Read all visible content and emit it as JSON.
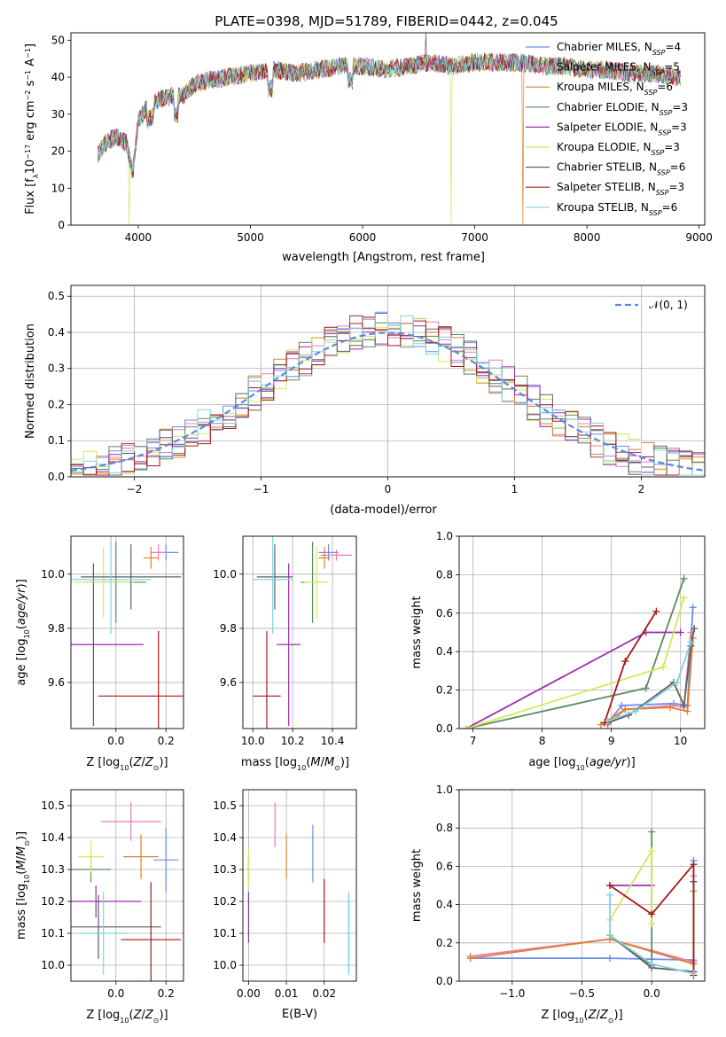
{
  "figure_title": "PLATE=0398, MJD=51789, FIBERID=0442, z=0.045",
  "colors": {
    "Chabrier MILES": "#6c8ee8",
    "Salpeter MILES": "#e57fb0",
    "Kroupa MILES": "#e0802a",
    "Chabrier ELODIE": "#5a8a5e",
    "Salpeter ELODIE": "#9b2fae",
    "Kroupa ELODIE": "#d4e85a",
    "Chabrier STELIB": "#606060",
    "Salpeter STELIB": "#a81818",
    "Kroupa STELIB": "#7fd3e0"
  },
  "chart_data": [
    {
      "panel": "spectrum",
      "type": "line",
      "title": "PLATE=0398, MJD=51789, FIBERID=0442, z=0.045",
      "xlabel": "wavelength [Angstrom, rest frame]",
      "ylabel": "Flux [f_λ 10^-17 erg cm^-2 s^-1 A^-1]",
      "xlim": [
        3400,
        9050
      ],
      "ylim": [
        0,
        52
      ],
      "xticks": [
        4000,
        5000,
        6000,
        7000,
        8000,
        9000
      ],
      "yticks": [
        0,
        10,
        20,
        30,
        40,
        50
      ],
      "legend_position": "right",
      "legend": [
        {
          "label": "Chabrier MILES, N",
          "sub": "SSP",
          "tail": "=4"
        },
        {
          "label": "Salpeter MILES, N",
          "sub": "SSP",
          "tail": "=5"
        },
        {
          "label": "Kroupa MILES, N",
          "sub": "SSP",
          "tail": "=6"
        },
        {
          "label": "Chabrier ELODIE, N",
          "sub": "SSP",
          "tail": "=3"
        },
        {
          "label": "Salpeter ELODIE, N",
          "sub": "SSP",
          "tail": "=3"
        },
        {
          "label": "Kroupa ELODIE, N",
          "sub": "SSP",
          "tail": "=3"
        },
        {
          "label": "Chabrier STELIB, N",
          "sub": "SSP",
          "tail": "=6"
        },
        {
          "label": "Salpeter STELIB, N",
          "sub": "SSP",
          "tail": "=3"
        },
        {
          "label": "Kroupa STELIB, N",
          "sub": "SSP",
          "tail": "=6"
        }
      ],
      "continuum": {
        "x": [
          3640,
          3700,
          3800,
          3900,
          3950,
          4000,
          4100,
          4200,
          4300,
          4400,
          4500,
          4600,
          4800,
          5000,
          5200,
          5400,
          5600,
          5800,
          6000,
          6200,
          6400,
          6600,
          6800,
          7000,
          7200,
          7400,
          7600,
          7800,
          8000,
          8200,
          8400,
          8600,
          8800
        ],
        "y": [
          19,
          22,
          24,
          22,
          14,
          28,
          33,
          34,
          35,
          35,
          38,
          39,
          40,
          41,
          42,
          41,
          42,
          43,
          43,
          42,
          43,
          44,
          43,
          44,
          44,
          44,
          43,
          43,
          42,
          42,
          41,
          41,
          40
        ]
      },
      "dropouts": [
        {
          "series": "Kroupa ELODIE",
          "x": 3915,
          "y": 0
        },
        {
          "series": "Kroupa ELODIE",
          "x": 6790,
          "y": 0
        },
        {
          "series": "Kroupa MILES",
          "x": 7425,
          "y": 0
        }
      ]
    },
    {
      "panel": "residual_histogram",
      "type": "line",
      "xlabel": "(data-model)/error",
      "ylabel": "Normed distribution",
      "xlim": [
        -2.5,
        2.5
      ],
      "ylim": [
        0,
        0.53
      ],
      "xticks": [
        -2,
        -1,
        0,
        1,
        2
      ],
      "yticks": [
        0.0,
        0.1,
        0.2,
        0.3,
        0.4,
        0.5
      ],
      "grid": true,
      "legend_position": "top-right",
      "reference_curve": {
        "label": "𝒩(0, 1)",
        "mean": 0,
        "sigma": 1
      },
      "bin_width": 0.1,
      "bin_start": -2.5,
      "gaussian_envelope": {
        "peak": 0.41,
        "sigma": 0.98
      },
      "series_noise_amplitude": 0.05
    },
    {
      "panel": "Z_vs_age",
      "type": "scatter",
      "xlabel": "Z [log10(Z/Z⊙)]",
      "ylabel": "age [log10(age/yr)]",
      "xlim": [
        -0.18,
        0.27
      ],
      "ylim": [
        9.43,
        10.14
      ],
      "xticks": [
        0.0,
        0.2
      ],
      "xtick_labels": [
        "0.0",
        "0.2"
      ],
      "yticks": [
        9.6,
        9.8,
        10.0
      ],
      "grid": true,
      "points": [
        {
          "series": "Chabrier MILES",
          "x": 0.2,
          "y": 10.08,
          "xerr": 0.05,
          "yerr": 0.03
        },
        {
          "series": "Salpeter MILES",
          "x": 0.17,
          "y": 10.08,
          "xerr": 0.03,
          "yerr": 0.03
        },
        {
          "series": "Kroupa MILES",
          "x": 0.14,
          "y": 10.06,
          "xerr": 0.03,
          "yerr": 0.04
        },
        {
          "series": "Chabrier ELODIE",
          "x": 0.0,
          "y": 9.97,
          "xerr": 0.12,
          "yerr": 0.15
        },
        {
          "series": "Salpeter ELODIE",
          "x": -0.09,
          "y": 9.74,
          "xerr": 0.2,
          "yerr": 0.3
        },
        {
          "series": "Kroupa ELODIE",
          "x": -0.05,
          "y": 9.97,
          "xerr": 0.12,
          "yerr": 0.13
        },
        {
          "series": "Chabrier STELIB",
          "x": 0.06,
          "y": 9.99,
          "xerr": 0.2,
          "yerr": 0.12
        },
        {
          "series": "Salpeter STELIB",
          "x": 0.17,
          "y": 9.55,
          "xerr": 0.24,
          "yerr": 0.24
        },
        {
          "series": "Kroupa STELIB",
          "x": -0.02,
          "y": 9.98,
          "xerr": 0.16,
          "yerr": 0.2
        }
      ]
    },
    {
      "panel": "mass_vs_age",
      "type": "scatter",
      "xlabel": "mass [log10(M/M⊙)]",
      "xlim": [
        9.95,
        10.52
      ],
      "ylim": [
        9.43,
        10.14
      ],
      "xticks": [
        10.0,
        10.2,
        10.4
      ],
      "xtick_labels": [
        "10.0",
        "10.2",
        "10.4"
      ],
      "yticks": [
        9.6,
        9.8,
        10.0
      ],
      "grid": true,
      "points": [
        {
          "series": "Chabrier MILES",
          "x": 10.38,
          "y": 10.08,
          "xerr": 0.05,
          "yerr": 0.03
        },
        {
          "series": "Salpeter MILES",
          "x": 10.42,
          "y": 10.07,
          "xerr": 0.08,
          "yerr": 0.02
        },
        {
          "series": "Kroupa MILES",
          "x": 10.36,
          "y": 10.06,
          "xerr": 0.03,
          "yerr": 0.04
        },
        {
          "series": "Chabrier ELODIE",
          "x": 10.3,
          "y": 9.97,
          "xerr": 0.06,
          "yerr": 0.15
        },
        {
          "series": "Salpeter ELODIE",
          "x": 10.18,
          "y": 9.74,
          "xerr": 0.06,
          "yerr": 0.3
        },
        {
          "series": "Kroupa ELODIE",
          "x": 10.32,
          "y": 9.97,
          "xerr": 0.06,
          "yerr": 0.13
        },
        {
          "series": "Chabrier STELIB",
          "x": 10.11,
          "y": 9.99,
          "xerr": 0.09,
          "yerr": 0.12
        },
        {
          "series": "Salpeter STELIB",
          "x": 10.07,
          "y": 9.55,
          "xerr": 0.07,
          "yerr": 0.24
        },
        {
          "series": "Kroupa STELIB",
          "x": 10.1,
          "y": 9.98,
          "xerr": 0.1,
          "yerr": 0.2
        }
      ]
    },
    {
      "panel": "age_vs_mass_weight",
      "type": "line",
      "xlabel": "age [log10(age/yr)]",
      "ylabel": "mass weight",
      "xlim": [
        6.8,
        10.35
      ],
      "ylim": [
        0,
        1.0
      ],
      "xticks": [
        7,
        8,
        9,
        10
      ],
      "yticks": [
        0.0,
        0.2,
        0.4,
        0.6,
        0.8,
        1.0
      ],
      "grid": true,
      "series": [
        {
          "name": "Chabrier MILES",
          "x": [
            8.95,
            9.15,
            9.9,
            10.1,
            10.18
          ],
          "y": [
            0.03,
            0.12,
            0.13,
            0.12,
            0.63
          ]
        },
        {
          "name": "Salpeter MILES",
          "x": [
            8.95,
            9.2,
            9.9,
            10.05,
            10.15
          ],
          "y": [
            0.02,
            0.1,
            0.12,
            0.11,
            0.5
          ]
        },
        {
          "name": "Kroupa MILES",
          "x": [
            8.85,
            9.2,
            9.85,
            10.1,
            10.18
          ],
          "y": [
            0.02,
            0.1,
            0.11,
            0.09,
            0.47
          ]
        },
        {
          "name": "Chabrier ELODIE",
          "x": [
            6.9,
            9.5,
            10.05
          ],
          "y": [
            0.0,
            0.21,
            0.78
          ]
        },
        {
          "name": "Salpeter ELODIE",
          "x": [
            6.9,
            9.5,
            10.0
          ],
          "y": [
            0.0,
            0.5,
            0.5
          ]
        },
        {
          "name": "Kroupa ELODIE",
          "x": [
            6.9,
            9.75,
            10.05
          ],
          "y": [
            0.0,
            0.32,
            0.68
          ]
        },
        {
          "name": "Chabrier STELIB",
          "x": [
            8.95,
            9.25,
            9.9,
            10.05,
            10.15,
            10.2
          ],
          "y": [
            0.03,
            0.07,
            0.24,
            0.12,
            0.43,
            0.52
          ]
        },
        {
          "name": "Salpeter STELIB",
          "x": [
            8.9,
            9.2,
            9.65
          ],
          "y": [
            0.03,
            0.35,
            0.61
          ]
        },
        {
          "name": "Kroupa STELIB",
          "x": [
            8.95,
            9.35,
            9.95,
            10.15
          ],
          "y": [
            0.04,
            0.09,
            0.24,
            0.45
          ]
        }
      ]
    },
    {
      "panel": "Z_vs_mass",
      "type": "scatter",
      "xlabel": "Z [log10(Z/Z⊙)]",
      "ylabel": "mass [log10(M/M⊙)]",
      "xlim": [
        -0.18,
        0.27
      ],
      "ylim": [
        9.95,
        10.55
      ],
      "xticks": [
        0.0,
        0.2
      ],
      "xtick_labels": [
        "0.0",
        "0.2"
      ],
      "yticks": [
        10.0,
        10.1,
        10.2,
        10.3,
        10.4,
        10.5
      ],
      "grid": true,
      "points": [
        {
          "series": "Chabrier MILES",
          "x": 0.2,
          "y": 10.33,
          "xerr": 0.05,
          "yerr": 0.1
        },
        {
          "series": "Salpeter MILES",
          "x": 0.06,
          "y": 10.45,
          "xerr": 0.12,
          "yerr": 0.06
        },
        {
          "series": "Kroupa MILES",
          "x": 0.1,
          "y": 10.34,
          "xerr": 0.07,
          "yerr": 0.07
        },
        {
          "series": "Chabrier ELODIE",
          "x": -0.1,
          "y": 10.3,
          "xerr": 0.08,
          "yerr": 0.04
        },
        {
          "series": "Salpeter ELODIE",
          "x": -0.08,
          "y": 10.2,
          "xerr": 0.18,
          "yerr": 0.05
        },
        {
          "series": "Kroupa ELODIE",
          "x": -0.1,
          "y": 10.34,
          "xerr": 0.05,
          "yerr": 0.05
        },
        {
          "series": "Chabrier STELIB",
          "x": -0.07,
          "y": 10.12,
          "xerr": 0.25,
          "yerr": 0.1
        },
        {
          "series": "Salpeter STELIB",
          "x": 0.14,
          "y": 10.08,
          "xerr": 0.12,
          "yerr": 0.18
        },
        {
          "series": "Kroupa STELIB",
          "x": -0.05,
          "y": 10.1,
          "xerr": 0.1,
          "yerr": 0.13
        }
      ]
    },
    {
      "panel": "EBV_vs_mass",
      "type": "scatter",
      "xlabel": "E(B-V)",
      "xlim": [
        -0.0015,
        0.0285
      ],
      "ylim": [
        9.95,
        10.55
      ],
      "xticks": [
        0.0,
        0.01,
        0.02
      ],
      "xtick_labels": [
        "0.00",
        "0.01",
        "0.02"
      ],
      "yticks": [
        10.0,
        10.1,
        10.2,
        10.3,
        10.4,
        10.5
      ],
      "grid": true,
      "points": [
        {
          "series": "Chabrier MILES",
          "x": 0.017,
          "y": 10.35,
          "yerr": 0.09
        },
        {
          "series": "Salpeter MILES",
          "x": 0.007,
          "y": 10.44,
          "yerr": 0.07
        },
        {
          "series": "Kroupa MILES",
          "x": 0.01,
          "y": 10.34,
          "yerr": 0.07
        },
        {
          "series": "Chabrier ELODIE",
          "x": 0.0,
          "y": 10.3,
          "yerr": 0.04
        },
        {
          "series": "Salpeter ELODIE",
          "x": 0.0,
          "y": 10.15,
          "yerr": 0.08
        },
        {
          "series": "Kroupa ELODIE",
          "x": 0.0,
          "y": 10.3,
          "yerr": 0.06
        },
        {
          "series": "Chabrier STELIB",
          "x": 0.0265,
          "y": 10.1,
          "yerr": 0.12
        },
        {
          "series": "Salpeter STELIB",
          "x": 0.02,
          "y": 10.17,
          "yerr": 0.1
        },
        {
          "series": "Kroupa STELIB",
          "x": 0.0265,
          "y": 10.1,
          "yerr": 0.13
        }
      ]
    },
    {
      "panel": "Z_vs_mass_weight",
      "type": "line",
      "xlabel": "Z [log10(Z/Z⊙)]",
      "ylabel": "mass weight",
      "xlim": [
        -1.38,
        0.38
      ],
      "ylim": [
        0,
        1.0
      ],
      "xticks": [
        -1.0,
        -0.5,
        0.0
      ],
      "xtick_labels": [
        "−1.0",
        "−0.5",
        "0.0"
      ],
      "yticks": [
        0.0,
        0.2,
        0.4,
        0.6,
        0.8,
        1.0
      ],
      "grid": true,
      "series": [
        {
          "name": "Chabrier MILES",
          "x": [
            -1.3,
            -0.3,
            0.3,
            0.3
          ],
          "y": [
            0.12,
            0.12,
            0.11,
            0.63
          ]
        },
        {
          "name": "Salpeter MILES",
          "x": [
            -1.3,
            -0.3,
            0.3,
            0.3
          ],
          "y": [
            0.13,
            0.22,
            0.1,
            0.55
          ]
        },
        {
          "name": "Kroupa MILES",
          "x": [
            -1.3,
            -0.3,
            0.3,
            0.3
          ],
          "y": [
            0.12,
            0.22,
            0.09,
            0.47
          ]
        },
        {
          "name": "Chabrier ELODIE",
          "x": [
            -0.3,
            0.0,
            0.0
          ],
          "y": [
            0.24,
            0.08,
            0.78
          ]
        },
        {
          "name": "Salpeter ELODIE",
          "x": [
            -0.3,
            0.0
          ],
          "y": [
            0.5,
            0.5
          ]
        },
        {
          "name": "Kroupa ELODIE",
          "x": [
            -0.3,
            0.0,
            0.0
          ],
          "y": [
            0.32,
            0.68,
            0.3
          ]
        },
        {
          "name": "Chabrier STELIB",
          "x": [
            -0.3,
            0.0,
            0.3,
            0.3
          ],
          "y": [
            0.24,
            0.07,
            0.05,
            0.52
          ]
        },
        {
          "name": "Salpeter STELIB",
          "x": [
            -0.3,
            0.0,
            0.3,
            0.3
          ],
          "y": [
            0.5,
            0.35,
            0.61,
            0.03
          ]
        },
        {
          "name": "Kroupa STELIB",
          "x": [
            -0.3,
            -0.3,
            0.0,
            0.3
          ],
          "y": [
            0.45,
            0.24,
            0.09,
            0.04
          ]
        }
      ]
    }
  ]
}
